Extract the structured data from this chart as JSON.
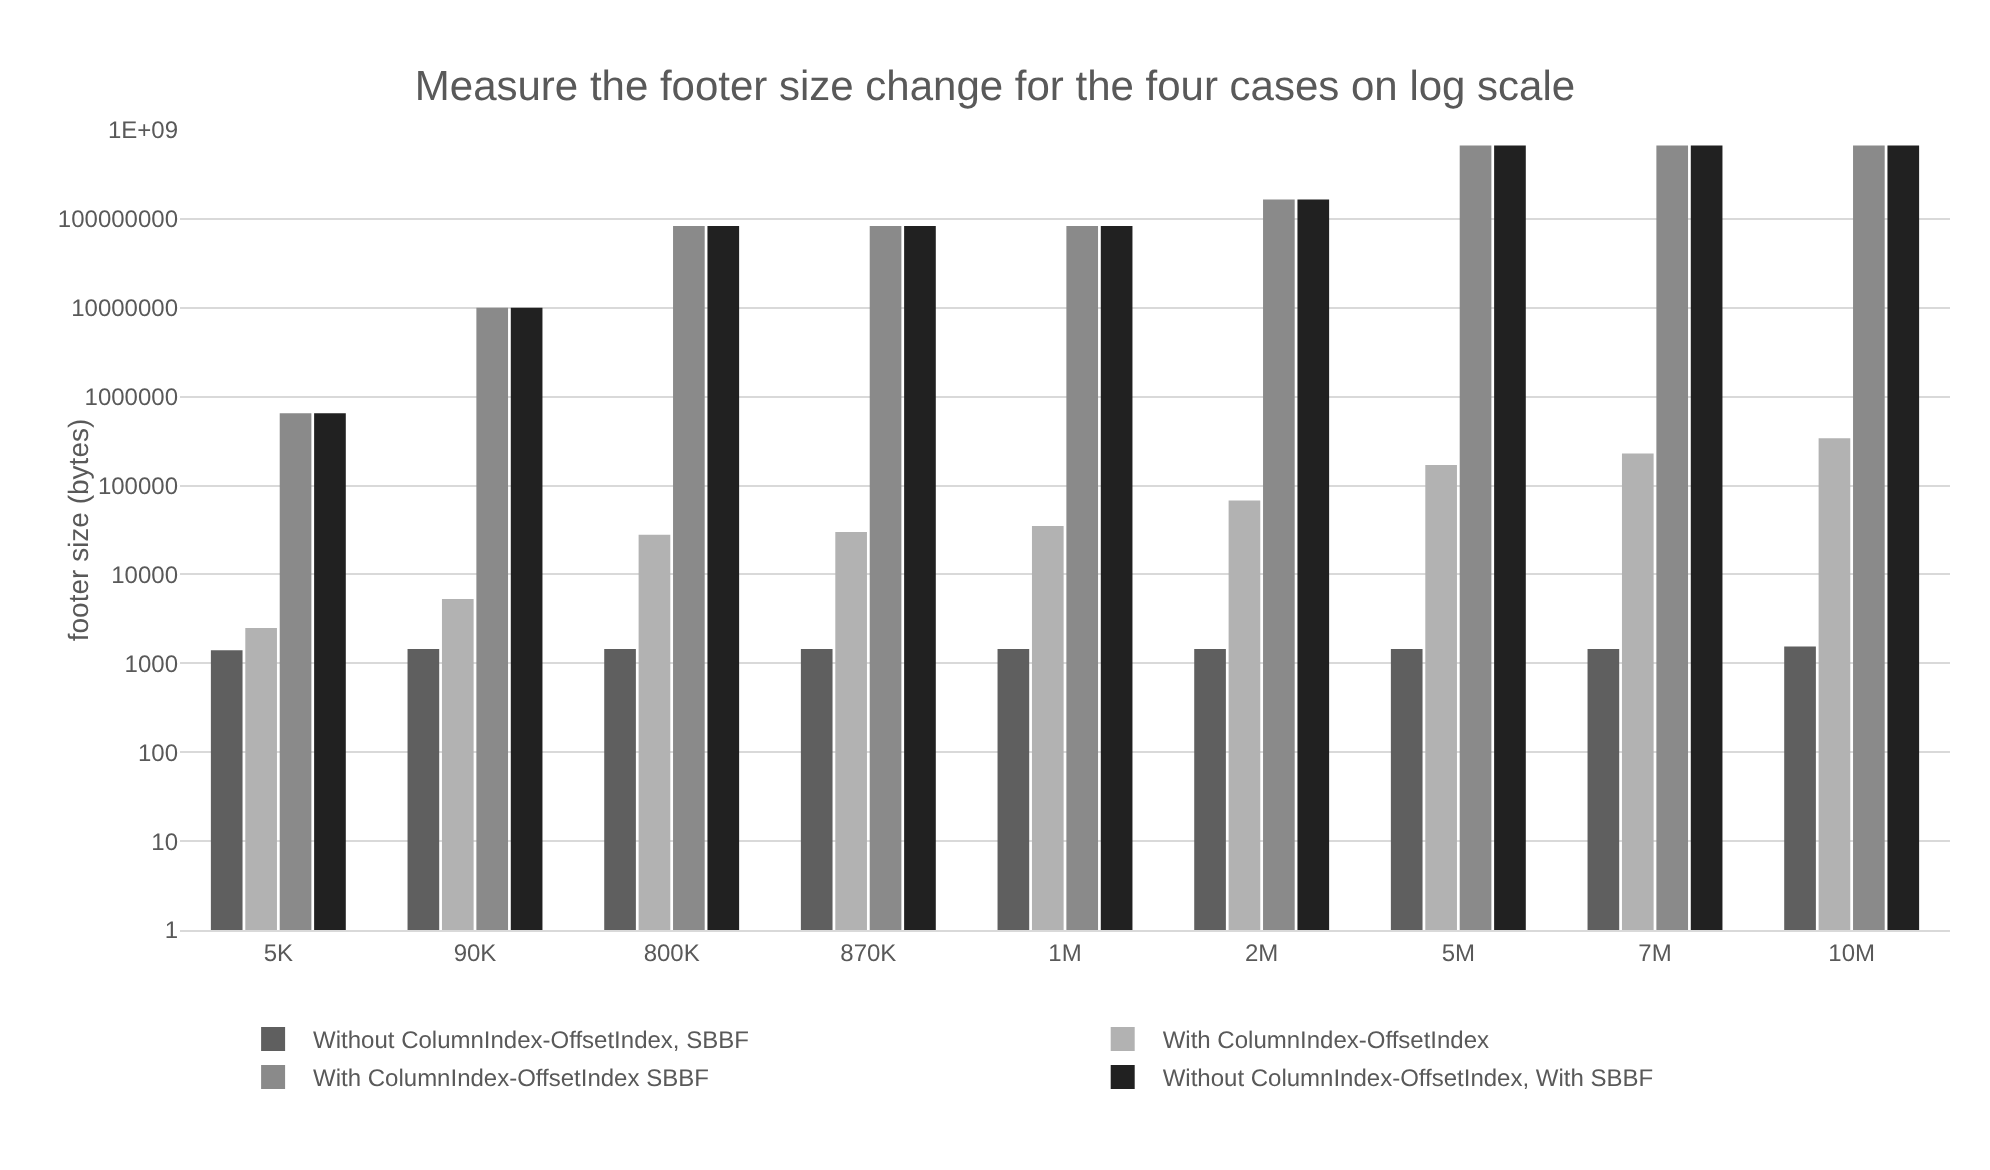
{
  "chart_data": {
    "type": "bar",
    "title": "Measure the footer size change for the four cases on log scale",
    "ylabel": "footer size (bytes)",
    "categories": [
      "5K",
      "90K",
      "800K",
      "870K",
      "1M",
      "2M",
      "5M",
      "7M",
      "10M"
    ],
    "series": [
      {
        "name": "Without ColumnIndex-OffsetIndex, SBBF",
        "color": "#5f5f5f",
        "values": [
          1400,
          1450,
          1450,
          1450,
          1450,
          1450,
          1450,
          1450,
          1550
        ]
      },
      {
        "name": "With ColumnIndex-OffsetIndex",
        "color": "#b2b2b2",
        "values": [
          2500,
          5300,
          28000,
          30000,
          35000,
          68000,
          170000,
          230000,
          340000
        ]
      },
      {
        "name": "With ColumnIndex-OffsetIndex SBBF",
        "color": "#8a8a8a",
        "values": [
          650000,
          10000000,
          83000000,
          83000000,
          83000000,
          165000000,
          670000000,
          670000000,
          670000000
        ]
      },
      {
        "name": "Without ColumnIndex-OffsetIndex, With SBBF",
        "color": "#212121",
        "values": [
          650000,
          10000000,
          83000000,
          83000000,
          83000000,
          165000000,
          670000000,
          670000000,
          670000000
        ]
      }
    ],
    "log": true,
    "ylim": [
      1,
      1000000000
    ],
    "yticks": [
      1,
      10,
      100,
      1000,
      10000,
      100000,
      1000000,
      10000000,
      100000000,
      {
        "value": 1000000000,
        "label": "1E+09"
      }
    ],
    "grid": "y",
    "legend": "bottom"
  }
}
